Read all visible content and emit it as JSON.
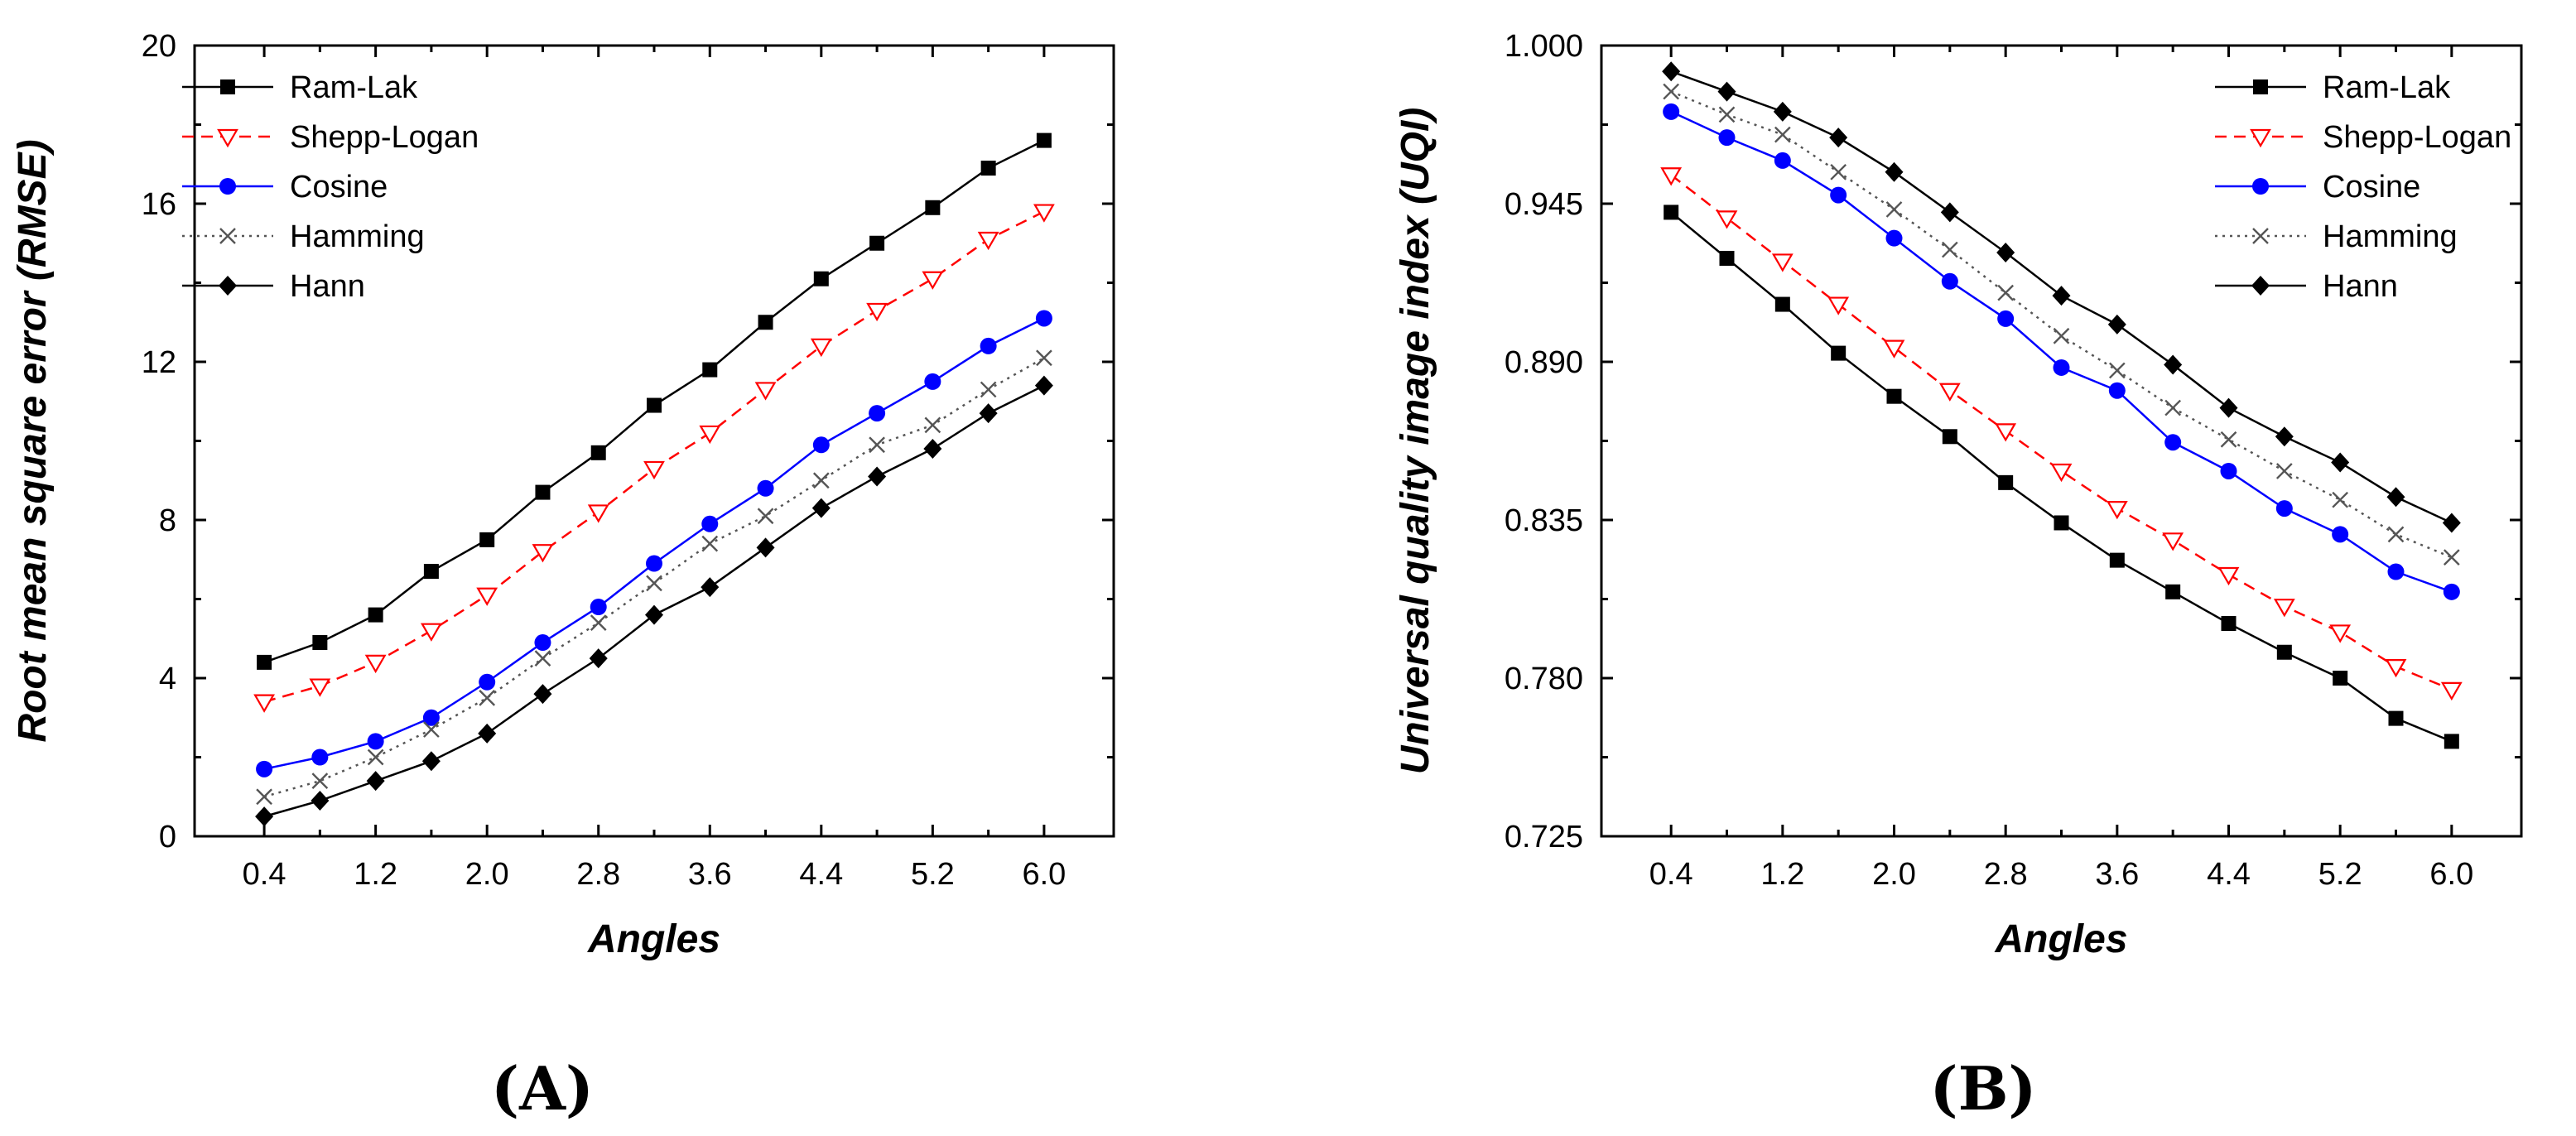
{
  "chart_data": [
    {
      "type": "line",
      "panel_label": "(A)",
      "xlabel": "Angles",
      "ylabel": "Root mean square error (RMSE)",
      "x": [
        0.4,
        0.8,
        1.2,
        1.6,
        2.0,
        2.4,
        2.8,
        3.2,
        3.6,
        4.0,
        4.4,
        4.8,
        5.2,
        5.6,
        6.0
      ],
      "xticks": [
        "0.4",
        "1.2",
        "2.0",
        "2.8",
        "3.6",
        "4.4",
        "5.2",
        "6.0"
      ],
      "xtick_values": [
        0.4,
        1.2,
        2.0,
        2.8,
        3.6,
        4.4,
        5.2,
        6.0
      ],
      "xlim": [
        -0.1,
        6.5
      ],
      "yticks": [
        "0",
        "4",
        "8",
        "12",
        "16",
        "20"
      ],
      "ytick_values": [
        0,
        4,
        8,
        12,
        16,
        20
      ],
      "ylim": [
        0,
        20
      ],
      "legend_position": "top-left",
      "series": [
        {
          "name": "Ram-Lak",
          "color": "#000000",
          "marker": "square",
          "line": "solid",
          "values": [
            4.4,
            4.9,
            5.6,
            6.7,
            7.5,
            8.7,
            9.7,
            10.9,
            11.8,
            13.0,
            14.1,
            15.0,
            15.9,
            16.9,
            17.6
          ]
        },
        {
          "name": "Shepp-Logan",
          "color": "#ff0000",
          "marker": "triangle-down-open",
          "line": "dashed",
          "values": [
            3.4,
            3.8,
            4.4,
            5.2,
            6.1,
            7.2,
            8.2,
            9.3,
            10.2,
            11.3,
            12.4,
            13.3,
            14.1,
            15.1,
            15.8
          ]
        },
        {
          "name": "Cosine",
          "color": "#0000ff",
          "marker": "circle",
          "line": "solid",
          "values": [
            1.7,
            2.0,
            2.4,
            3.0,
            3.9,
            4.9,
            5.8,
            6.9,
            7.9,
            8.8,
            9.9,
            10.7,
            11.5,
            12.4,
            13.1
          ]
        },
        {
          "name": "Hamming",
          "color": "#555555",
          "marker": "x",
          "line": "dotted",
          "values": [
            1.0,
            1.4,
            2.0,
            2.7,
            3.5,
            4.5,
            5.4,
            6.4,
            7.4,
            8.1,
            9.0,
            9.9,
            10.4,
            11.3,
            12.1
          ]
        },
        {
          "name": "Hann",
          "color": "#000000",
          "marker": "diamond",
          "line": "solid",
          "values": [
            0.5,
            0.9,
            1.4,
            1.9,
            2.6,
            3.6,
            4.5,
            5.6,
            6.3,
            7.3,
            8.3,
            9.1,
            9.8,
            10.7,
            11.4
          ]
        }
      ]
    },
    {
      "type": "line",
      "panel_label": "(B)",
      "xlabel": "Angles",
      "ylabel": "Universal quality image index (UQI)",
      "x": [
        0.4,
        0.8,
        1.2,
        1.6,
        2.0,
        2.4,
        2.8,
        3.2,
        3.6,
        4.0,
        4.4,
        4.8,
        5.2,
        5.6,
        6.0
      ],
      "xticks": [
        "0.4",
        "1.2",
        "2.0",
        "2.8",
        "3.6",
        "4.4",
        "5.2",
        "6.0"
      ],
      "xtick_values": [
        0.4,
        1.2,
        2.0,
        2.8,
        3.6,
        4.4,
        5.2,
        6.0
      ],
      "xlim": [
        -0.1,
        6.5
      ],
      "yticks": [
        "0.725",
        "0.780",
        "0.835",
        "0.890",
        "0.945",
        "1.000"
      ],
      "ytick_values": [
        0.725,
        0.78,
        0.835,
        0.89,
        0.945,
        1.0
      ],
      "ylim": [
        0.725,
        1.0
      ],
      "legend_position": "top-right",
      "series": [
        {
          "name": "Ram-Lak",
          "color": "#000000",
          "marker": "square",
          "line": "solid",
          "values": [
            0.942,
            0.926,
            0.91,
            0.893,
            0.878,
            0.864,
            0.848,
            0.834,
            0.821,
            0.81,
            0.799,
            0.789,
            0.78,
            0.766,
            0.758
          ]
        },
        {
          "name": "Shepp-Logan",
          "color": "#ff0000",
          "marker": "triangle-down-open",
          "line": "dashed",
          "values": [
            0.955,
            0.94,
            0.925,
            0.91,
            0.895,
            0.88,
            0.866,
            0.852,
            0.839,
            0.828,
            0.816,
            0.805,
            0.796,
            0.784,
            0.776
          ]
        },
        {
          "name": "Cosine",
          "color": "#0000ff",
          "marker": "circle",
          "line": "solid",
          "values": [
            0.977,
            0.968,
            0.96,
            0.948,
            0.933,
            0.918,
            0.905,
            0.888,
            0.88,
            0.862,
            0.852,
            0.839,
            0.83,
            0.817,
            0.81
          ]
        },
        {
          "name": "Hamming",
          "color": "#555555",
          "marker": "x",
          "line": "dotted",
          "values": [
            0.984,
            0.976,
            0.969,
            0.956,
            0.943,
            0.929,
            0.914,
            0.899,
            0.887,
            0.874,
            0.863,
            0.852,
            0.842,
            0.83,
            0.822
          ]
        },
        {
          "name": "Hann",
          "color": "#000000",
          "marker": "diamond",
          "line": "solid",
          "values": [
            0.991,
            0.984,
            0.977,
            0.968,
            0.956,
            0.942,
            0.928,
            0.913,
            0.903,
            0.889,
            0.874,
            0.864,
            0.855,
            0.843,
            0.834
          ]
        }
      ]
    }
  ]
}
